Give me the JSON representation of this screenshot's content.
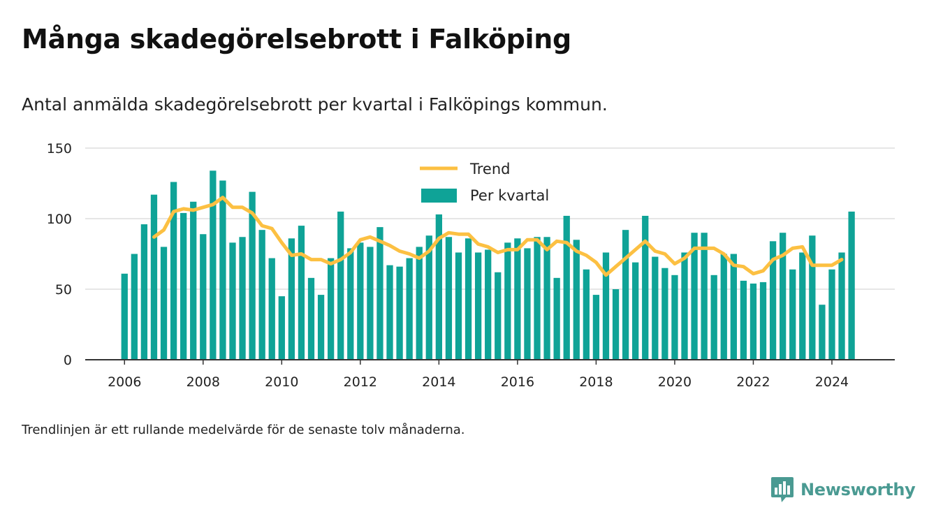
{
  "header": {
    "title": "Många skadegörelsebrott i Falköping",
    "subtitle": "Antal anmälda skadegörelsebrott per kvartal i Falköpings kommun."
  },
  "footnote": "Trendlinjen är ett rullande medelvärde för de senaste tolv månaderna.",
  "brand": {
    "name": "Newsworthy",
    "logo_icon": "bar-chart-speech-bubble-icon",
    "color": "#4a9a92"
  },
  "colors": {
    "bars": "#0fa397",
    "trend": "#fcc042",
    "grid": "#dddddd",
    "axis": "#333333"
  },
  "chart_data": {
    "type": "bar",
    "x_start": 2006.0,
    "x_step": 0.25,
    "xlim": [
      2005.0,
      2025.6
    ],
    "ylim": [
      0,
      150
    ],
    "yticks": [
      0,
      50,
      100,
      150
    ],
    "xticks": [
      2006,
      2008,
      2010,
      2012,
      2014,
      2016,
      2018,
      2020,
      2022,
      2024
    ],
    "grid": true,
    "legend_position": "top-center",
    "series": [
      {
        "name": "Per kvartal",
        "kind": "bar",
        "values": [
          61,
          75,
          96,
          117,
          80,
          126,
          104,
          112,
          89,
          134,
          127,
          83,
          87,
          119,
          92,
          72,
          45,
          86,
          95,
          58,
          46,
          72,
          105,
          79,
          83,
          80,
          94,
          67,
          66,
          72,
          80,
          88,
          103,
          87,
          76,
          86,
          76,
          78,
          62,
          83,
          86,
          79,
          87,
          87,
          58,
          102,
          85,
          64,
          46,
          76,
          50,
          92,
          69,
          102,
          73,
          65,
          60,
          76,
          90,
          90,
          60,
          75,
          75,
          56,
          54,
          55,
          84,
          90,
          64,
          76,
          88,
          39,
          64,
          76,
          105
        ]
      },
      {
        "name": "Trend",
        "kind": "line",
        "x_start": 2006.75,
        "values": [
          87,
          92,
          105,
          107,
          106,
          108,
          110,
          115,
          108,
          108,
          104,
          95,
          93,
          83,
          74,
          75,
          71,
          71,
          68,
          71,
          76,
          85,
          87,
          84,
          81,
          77,
          75,
          72,
          77,
          86,
          90,
          89,
          89,
          82,
          80,
          76,
          78,
          78,
          85,
          85,
          78,
          84,
          83,
          77,
          74,
          69,
          60,
          66,
          72,
          78,
          84,
          77,
          75,
          68,
          72,
          79,
          79,
          79,
          75,
          67,
          66,
          61,
          63,
          71,
          74,
          79,
          80,
          67,
          67,
          67,
          71
        ]
      }
    ]
  }
}
